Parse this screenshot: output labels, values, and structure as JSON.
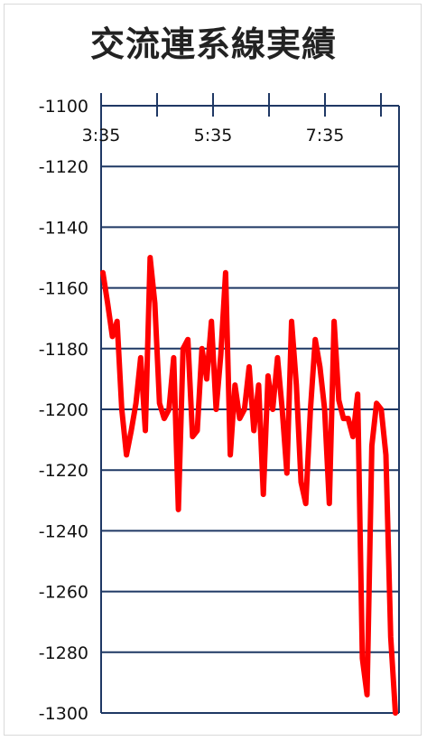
{
  "chart_data": {
    "type": "line",
    "title": "交流連系線実績",
    "xlabel": "",
    "ylabel": "",
    "ylim": [
      -1300,
      -1100
    ],
    "y_ticks": [
      -1100,
      -1120,
      -1140,
      -1160,
      -1180,
      -1200,
      -1220,
      -1240,
      -1260,
      -1280,
      -1300
    ],
    "x_tick_labels": [
      "3:35",
      "5:35",
      "7:35"
    ],
    "x_axis_position": "top",
    "grid": "horizontal",
    "series": [
      {
        "color": "#ff0000",
        "values": [
          -1155,
          -1165,
          -1176,
          -1171,
          -1200,
          -1215,
          -1207,
          -1198,
          -1183,
          -1207,
          -1150,
          -1165,
          -1198,
          -1203,
          -1200,
          -1183,
          -1233,
          -1180,
          -1177,
          -1209,
          -1207,
          -1180,
          -1190,
          -1171,
          -1200,
          -1182,
          -1155,
          -1215,
          -1192,
          -1203,
          -1200,
          -1186,
          -1207,
          -1192,
          -1228,
          -1189,
          -1200,
          -1183,
          -1200,
          -1221,
          -1171,
          -1192,
          -1224,
          -1231,
          -1200,
          -1177,
          -1186,
          -1200,
          -1231,
          -1171,
          -1197,
          -1203,
          -1203,
          -1209,
          -1195,
          -1282,
          -1294,
          -1212,
          -1198,
          -1200,
          -1215,
          -1275,
          -1300
        ]
      }
    ]
  }
}
